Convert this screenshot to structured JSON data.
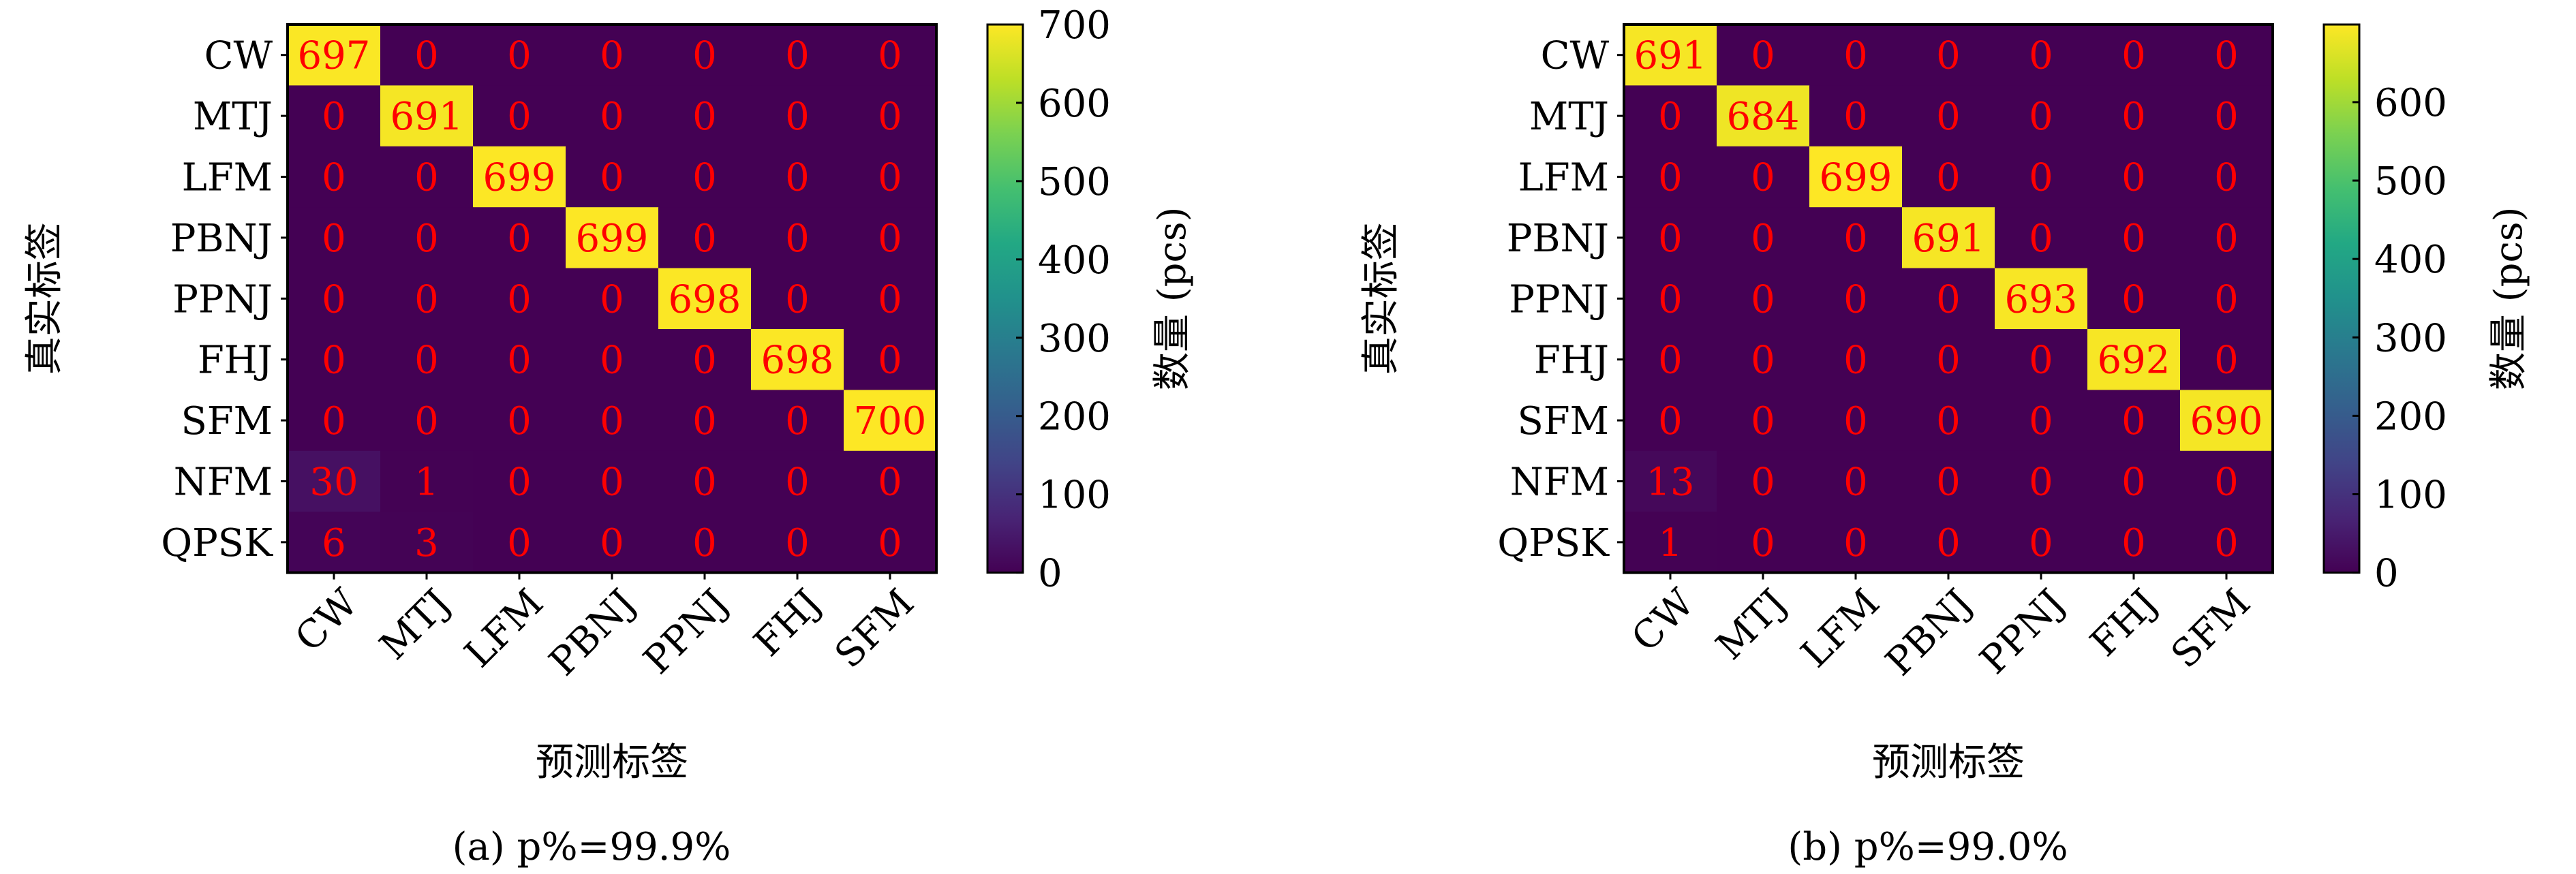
{
  "colors": {
    "cmap": [
      "#440154",
      "#482475",
      "#414487",
      "#355f8d",
      "#2a788e",
      "#21918c",
      "#22a884",
      "#44bf70",
      "#7ad151",
      "#bddf26",
      "#fde725"
    ],
    "cell_text": "#ff0000",
    "label_text": "#000000"
  },
  "chart_data": [
    {
      "type": "heatmap",
      "caption": "(a) p%=99.9%",
      "xlabel": "预测标签",
      "ylabel": "真实标签",
      "x_categories": [
        "CW",
        "MTJ",
        "LFM",
        "PBNJ",
        "PPNJ",
        "FHJ",
        "SFM"
      ],
      "y_categories": [
        "CW",
        "MTJ",
        "LFM",
        "PBNJ",
        "PPNJ",
        "FHJ",
        "SFM",
        "NFM",
        "QPSK"
      ],
      "values": [
        [
          697,
          0,
          0,
          0,
          0,
          0,
          0
        ],
        [
          0,
          691,
          0,
          0,
          0,
          0,
          0
        ],
        [
          0,
          0,
          699,
          0,
          0,
          0,
          0
        ],
        [
          0,
          0,
          0,
          699,
          0,
          0,
          0
        ],
        [
          0,
          0,
          0,
          0,
          698,
          0,
          0
        ],
        [
          0,
          0,
          0,
          0,
          0,
          698,
          0
        ],
        [
          0,
          0,
          0,
          0,
          0,
          0,
          700
        ],
        [
          30,
          1,
          0,
          0,
          0,
          0,
          0
        ],
        [
          6,
          3,
          0,
          0,
          0,
          0,
          0
        ]
      ],
      "colorbar": {
        "label": "数量 (pcs)",
        "range": [
          0,
          700
        ],
        "ticks": [
          "0",
          "100",
          "200",
          "300",
          "400",
          "500",
          "600",
          "700"
        ]
      }
    },
    {
      "type": "heatmap",
      "caption": "(b) p%=99.0%",
      "xlabel": "预测标签",
      "ylabel": "真实标签",
      "x_categories": [
        "CW",
        "MTJ",
        "LFM",
        "PBNJ",
        "PPNJ",
        "FHJ",
        "SFM"
      ],
      "y_categories": [
        "CW",
        "MTJ",
        "LFM",
        "PBNJ",
        "PPNJ",
        "FHJ",
        "SFM",
        "NFM",
        "QPSK"
      ],
      "values": [
        [
          691,
          0,
          0,
          0,
          0,
          0,
          0
        ],
        [
          0,
          684,
          0,
          0,
          0,
          0,
          0
        ],
        [
          0,
          0,
          699,
          0,
          0,
          0,
          0
        ],
        [
          0,
          0,
          0,
          691,
          0,
          0,
          0
        ],
        [
          0,
          0,
          0,
          0,
          693,
          0,
          0
        ],
        [
          0,
          0,
          0,
          0,
          0,
          692,
          0
        ],
        [
          0,
          0,
          0,
          0,
          0,
          0,
          690
        ],
        [
          13,
          0,
          0,
          0,
          0,
          0,
          0
        ],
        [
          1,
          0,
          0,
          0,
          0,
          0,
          0
        ]
      ],
      "colorbar": {
        "label": "数量 (pcs)",
        "range": [
          0,
          699
        ],
        "ticks": [
          "0",
          "100",
          "200",
          "300",
          "400",
          "500",
          "600"
        ]
      }
    }
  ]
}
